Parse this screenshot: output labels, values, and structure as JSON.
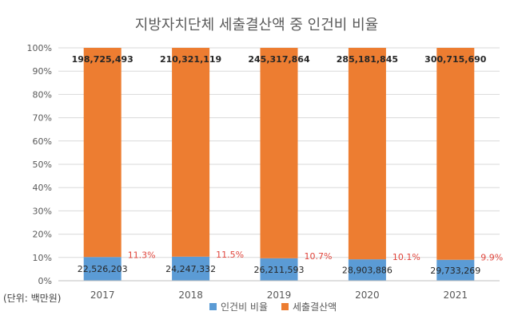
{
  "chart_data": {
    "type": "bar",
    "stacked": "percent",
    "title": "지방자치단체 세출결산액 중 인건비 비율",
    "unit_note": "(단위: 백만원)",
    "categories": [
      "2017",
      "2018",
      "2019",
      "2020",
      "2021"
    ],
    "ylim": [
      0,
      100
    ],
    "y_ticks": [
      "0%",
      "10%",
      "20%",
      "30%",
      "40%",
      "50%",
      "60%",
      "70%",
      "80%",
      "90%",
      "100%"
    ],
    "grid": true,
    "legend_position": "bottom",
    "series": [
      {
        "name": "인건비 비율",
        "color": "#5b9bd5",
        "values": [
          22526203,
          24247332,
          26211593,
          28903886,
          29733269
        ],
        "labels": [
          "22,526,203",
          "24,247,332",
          "26,211,593",
          "28,903,886",
          "29,733,269"
        ]
      },
      {
        "name": "세출결산액",
        "color": "#ed7d31",
        "values": [
          198725493,
          210321119,
          245317864,
          285181845,
          300715690
        ],
        "labels": [
          "198,725,493",
          "210,321,119",
          "245,317,864",
          "285,181,845",
          "300,715,690"
        ]
      }
    ],
    "percent_values": [
      11.3,
      11.5,
      10.7,
      10.1,
      9.9
    ],
    "percent_labels": [
      "11.3%",
      "11.5%",
      "10.7%",
      "10.1%",
      "9.9%"
    ],
    "percent_label_color": "#e0453c"
  }
}
